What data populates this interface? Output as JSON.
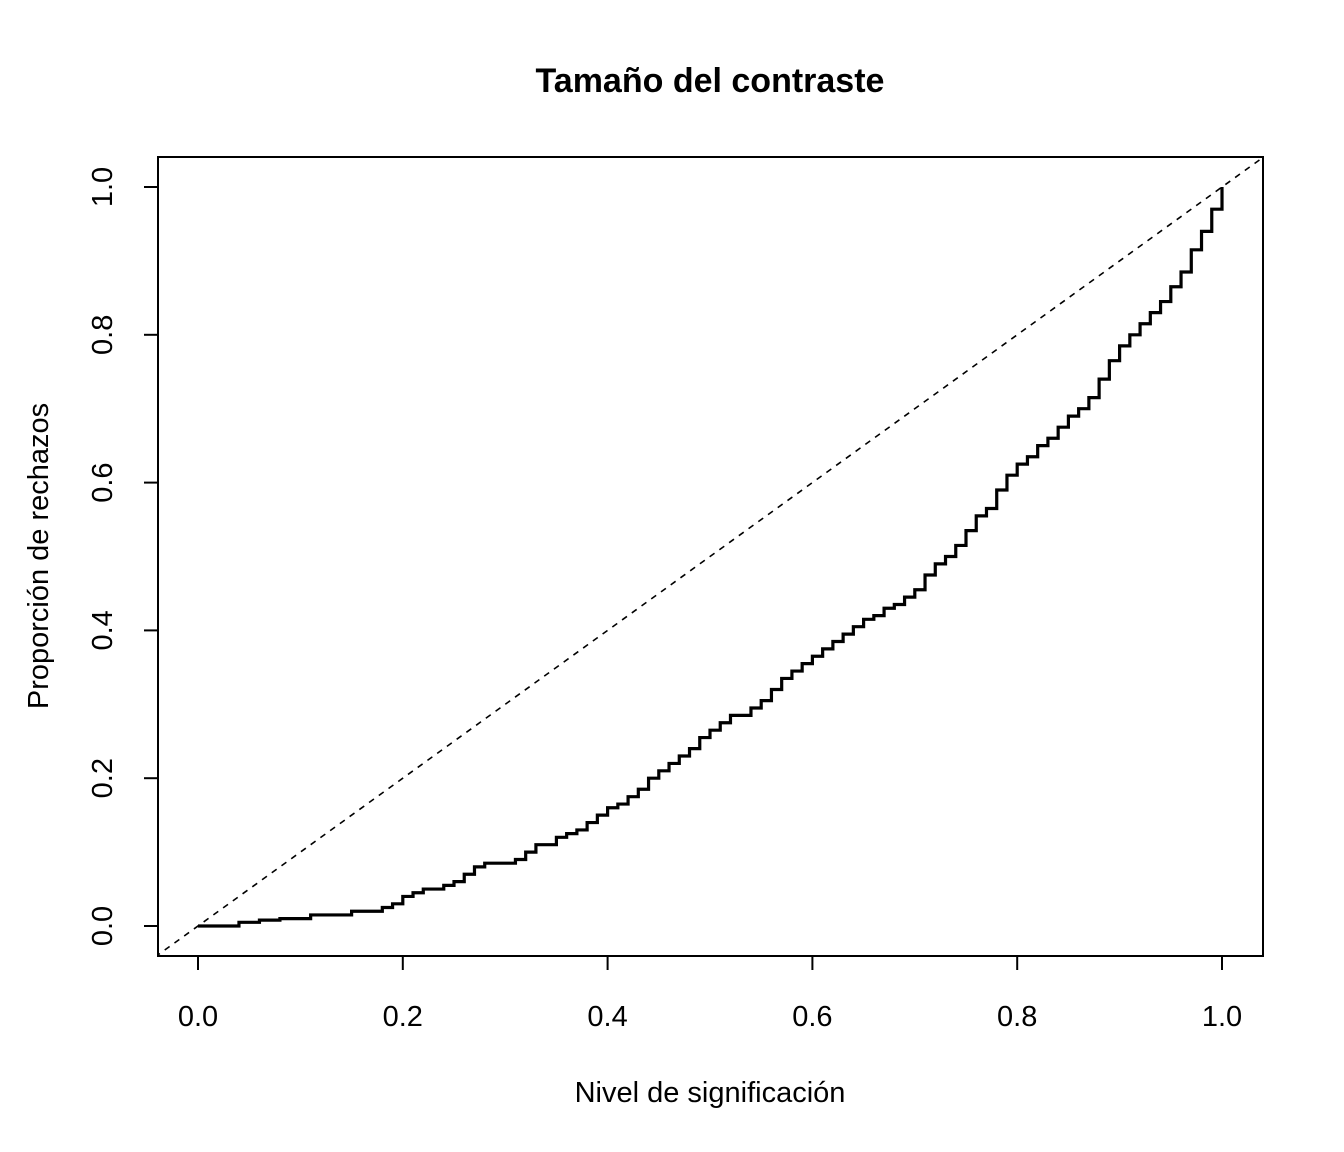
{
  "chart_data": {
    "type": "line",
    "title": "Tamaño del contraste",
    "xlabel": "Nivel de significación",
    "ylabel": "Proporción de rechazos",
    "xlim": [
      0,
      1
    ],
    "ylim": [
      0,
      1
    ],
    "x_ticks": [
      0.0,
      0.2,
      0.4,
      0.6,
      0.8,
      1.0
    ],
    "y_ticks": [
      0.0,
      0.2,
      0.4,
      0.6,
      0.8,
      1.0
    ],
    "x_tick_labels": [
      "0.0",
      "0.2",
      "0.4",
      "0.6",
      "0.8",
      "1.0"
    ],
    "y_tick_labels": [
      "0.0",
      "0.2",
      "0.4",
      "0.6",
      "0.8",
      "1.0"
    ],
    "grid": false,
    "series": [
      {
        "style": "step",
        "color": "#000000",
        "x": [
          0.0,
          0.04,
          0.06,
          0.08,
          0.11,
          0.15,
          0.18,
          0.19,
          0.2,
          0.21,
          0.22,
          0.24,
          0.25,
          0.26,
          0.27,
          0.28,
          0.31,
          0.32,
          0.33,
          0.35,
          0.36,
          0.37,
          0.38,
          0.39,
          0.4,
          0.41,
          0.42,
          0.43,
          0.44,
          0.45,
          0.46,
          0.47,
          0.48,
          0.49,
          0.5,
          0.51,
          0.52,
          0.54,
          0.55,
          0.56,
          0.57,
          0.58,
          0.59,
          0.6,
          0.61,
          0.62,
          0.63,
          0.64,
          0.65,
          0.66,
          0.67,
          0.68,
          0.69,
          0.7,
          0.71,
          0.72,
          0.73,
          0.74,
          0.75,
          0.76,
          0.77,
          0.78,
          0.79,
          0.8,
          0.81,
          0.82,
          0.83,
          0.84,
          0.85,
          0.86,
          0.87,
          0.88,
          0.89,
          0.9,
          0.91,
          0.92,
          0.93,
          0.94,
          0.95,
          0.96,
          0.97,
          0.98,
          0.99,
          1.0
        ],
        "y": [
          0.0,
          0.005,
          0.008,
          0.01,
          0.015,
          0.02,
          0.025,
          0.03,
          0.04,
          0.045,
          0.05,
          0.055,
          0.06,
          0.07,
          0.08,
          0.085,
          0.09,
          0.1,
          0.11,
          0.12,
          0.125,
          0.13,
          0.14,
          0.15,
          0.16,
          0.165,
          0.175,
          0.185,
          0.2,
          0.21,
          0.22,
          0.23,
          0.24,
          0.255,
          0.265,
          0.275,
          0.285,
          0.295,
          0.305,
          0.32,
          0.335,
          0.345,
          0.355,
          0.365,
          0.375,
          0.385,
          0.395,
          0.405,
          0.415,
          0.42,
          0.43,
          0.435,
          0.445,
          0.455,
          0.475,
          0.49,
          0.5,
          0.515,
          0.535,
          0.555,
          0.565,
          0.59,
          0.61,
          0.625,
          0.635,
          0.65,
          0.66,
          0.675,
          0.69,
          0.7,
          0.715,
          0.74,
          0.765,
          0.785,
          0.8,
          0.815,
          0.83,
          0.845,
          0.865,
          0.885,
          0.915,
          0.94,
          0.97,
          1.0
        ]
      },
      {
        "style": "dashed",
        "color": "#000000",
        "x": [
          -0.08,
          1.08
        ],
        "y": [
          -0.08,
          1.08
        ]
      }
    ]
  }
}
